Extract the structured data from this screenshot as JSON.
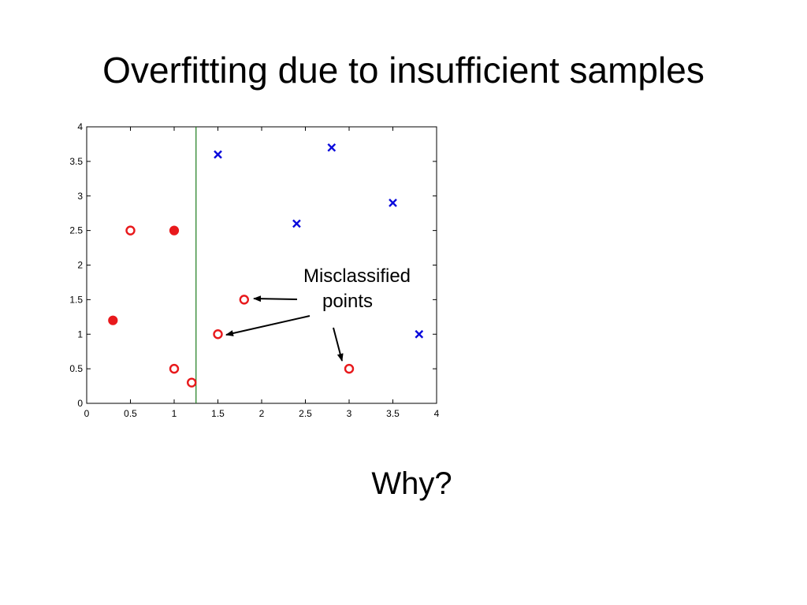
{
  "slide": {
    "title": "Overfitting due to insufficient samples",
    "subtitle": "Why?"
  },
  "chart_data": {
    "type": "scatter",
    "xlim": [
      0,
      4
    ],
    "ylim": [
      0,
      4
    ],
    "xticks": [
      "0",
      "0.5",
      "1",
      "1.5",
      "2",
      "2.5",
      "3",
      "3.5",
      "4"
    ],
    "yticks": [
      "0",
      "0.5",
      "1",
      "1.5",
      "2",
      "2.5",
      "3",
      "3.5",
      "4"
    ],
    "grid": false,
    "colors": {
      "circle": "#e8191c",
      "cross": "#0a0adc",
      "boundary": "#1a7a1a"
    },
    "series": [
      {
        "marker": "open-circle",
        "points": [
          [
            0.5,
            2.5
          ],
          [
            1.0,
            0.5
          ],
          [
            1.2,
            0.3
          ],
          [
            1.5,
            1.0
          ],
          [
            1.8,
            1.5
          ],
          [
            3.0,
            0.5
          ]
        ]
      },
      {
        "marker": "filled-circle",
        "points": [
          [
            0.3,
            1.2
          ],
          [
            1.0,
            2.5
          ]
        ]
      },
      {
        "marker": "cross",
        "points": [
          [
            1.5,
            3.6
          ],
          [
            2.4,
            2.6
          ],
          [
            2.8,
            3.7
          ],
          [
            3.5,
            2.9
          ],
          [
            3.8,
            1.0
          ]
        ]
      }
    ],
    "decision_boundary_x": 1.25,
    "annotation": {
      "line1": "Misclassified",
      "line2": "points"
    }
  }
}
